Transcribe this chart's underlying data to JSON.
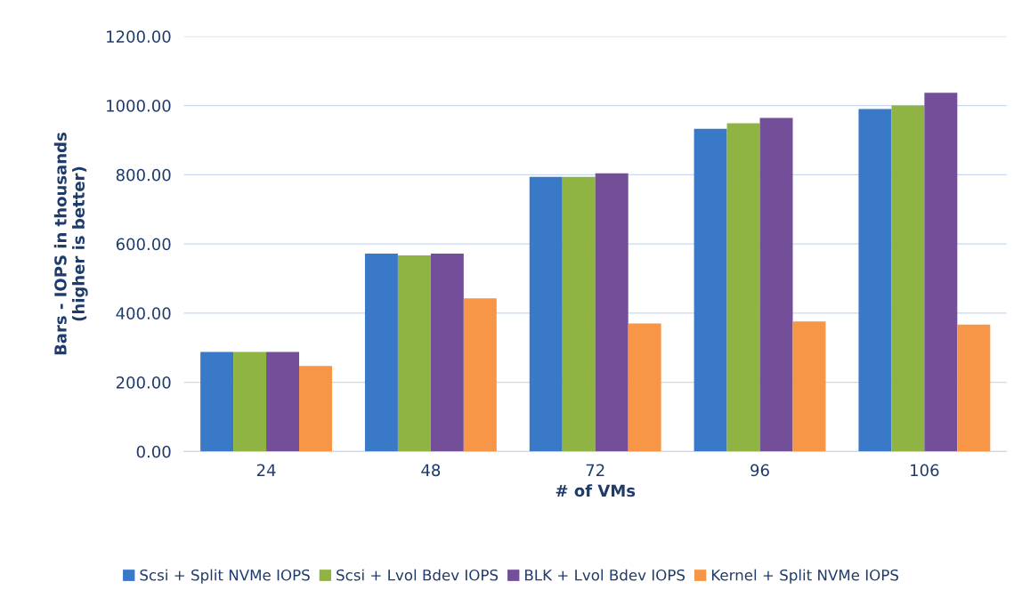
{
  "chart_data": {
    "type": "bar",
    "xlabel": "# of VMs",
    "ylabel": "Bars - IOPS in thousands\n(higher is better)",
    "categories": [
      "24",
      "48",
      "72",
      "96",
      "106"
    ],
    "series": [
      {
        "name": "Scsi + Split NVMe IOPS",
        "color": "#3a78c8",
        "values": [
          288,
          572,
          794,
          933,
          990
        ]
      },
      {
        "name": "Scsi + Lvol Bdev IOPS",
        "color": "#8fb444",
        "values": [
          288,
          567,
          794,
          949,
          1000
        ]
      },
      {
        "name": "BLK + Lvol Bdev IOPS",
        "color": "#734f9a",
        "values": [
          288,
          572,
          804,
          964,
          1037
        ]
      },
      {
        "name": "Kernel + Split NVMe IOPS",
        "color": "#f79646",
        "values": [
          247,
          443,
          370,
          376,
          367
        ]
      }
    ],
    "ylim": [
      0,
      1200
    ],
    "yticks": [
      {
        "value": 0,
        "label": "0.00"
      },
      {
        "value": 200,
        "label": "200.00"
      },
      {
        "value": 400,
        "label": "400.00"
      },
      {
        "value": 600,
        "label": "600.00"
      },
      {
        "value": 800,
        "label": "800.00"
      },
      {
        "value": 1000,
        "label": "1000.00"
      },
      {
        "value": 1200,
        "label": "1200.00"
      }
    ],
    "grid": "y",
    "legend": "bottom"
  }
}
